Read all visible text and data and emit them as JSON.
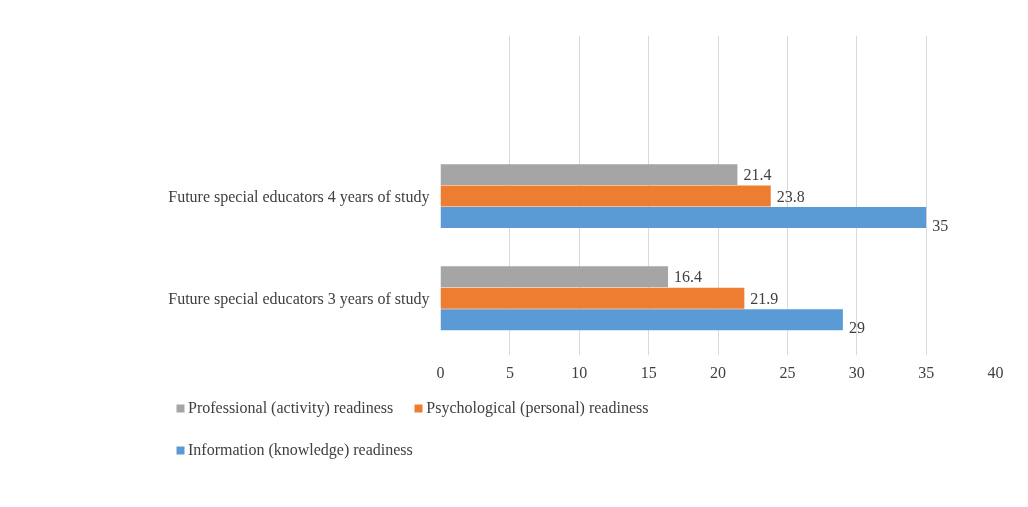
{
  "chart_data": {
    "type": "bar",
    "orientation": "horizontal",
    "categories": [
      "Future special educators 4 years of study",
      "Future special educators 3 years of study"
    ],
    "series": [
      {
        "name": "Professional (activity) readiness",
        "color": "#a5a5a5",
        "values": [
          21.4,
          16.4
        ]
      },
      {
        "name": "Psychological (personal) readiness",
        "color": "#ed7d31",
        "values": [
          23.8,
          21.9
        ]
      },
      {
        "name": "Information (knowledge) readiness",
        "color": "#5b9bd5",
        "values": [
          35,
          29
        ]
      }
    ],
    "xlim": [
      0,
      40
    ],
    "xticks": [
      0,
      5,
      10,
      15,
      20,
      25,
      30,
      35,
      40
    ],
    "grid": "x",
    "legend": "bottom",
    "data_labels": true
  }
}
